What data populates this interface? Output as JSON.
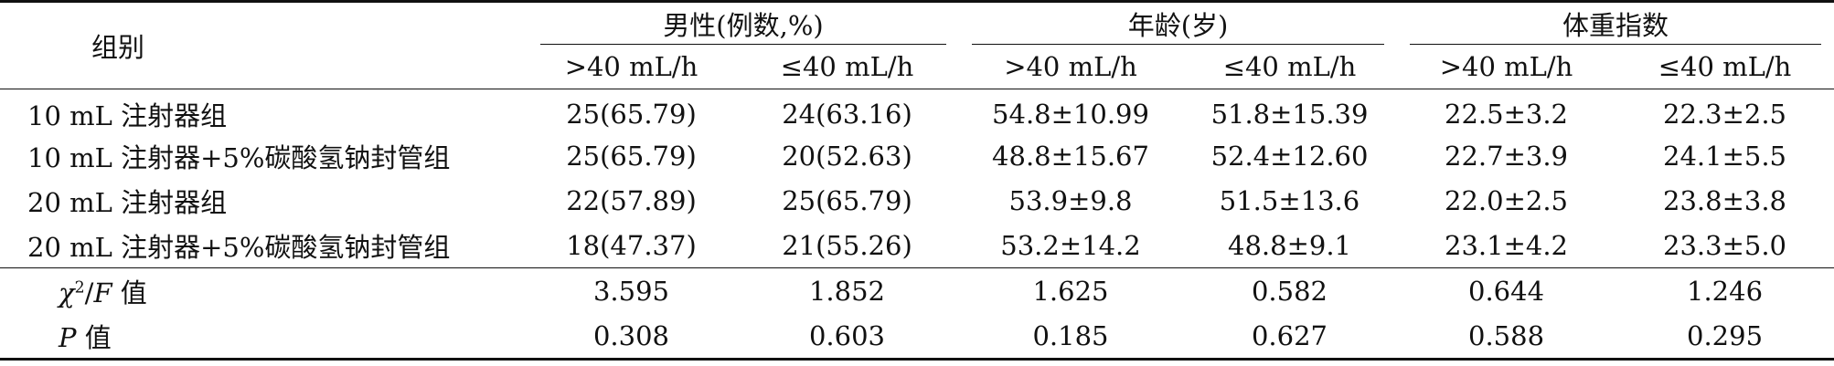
{
  "header": {
    "group_label": "组别",
    "groups": [
      {
        "title": "男性(例数,%)",
        "sub": [
          ">40 mL/h",
          "≤40 mL/h"
        ]
      },
      {
        "title": "年龄(岁)",
        "sub": [
          ">40 mL/h",
          "≤40 mL/h"
        ]
      },
      {
        "title": "体重指数",
        "sub": [
          ">40 mL/h",
          "≤40 mL/h"
        ]
      }
    ]
  },
  "rows": [
    {
      "label": "10 mL 注射器组",
      "cells": [
        "25(65.79)",
        "24(63.16)",
        "54.8±10.99",
        "51.8±15.39",
        "22.5±3.2",
        "22.3±2.5"
      ]
    },
    {
      "label": "10 mL 注射器+5%碳酸氢钠封管组",
      "cells": [
        "25(65.79)",
        "20(52.63)",
        "48.8±15.67",
        "52.4±12.60",
        "22.7±3.9",
        "24.1±5.5"
      ]
    },
    {
      "label": "20 mL 注射器组",
      "cells": [
        "22(57.89)",
        "25(65.79)",
        "53.9±9.8",
        "51.5±13.6",
        "22.0±2.5",
        "23.8±3.8"
      ]
    },
    {
      "label": "20 mL 注射器+5%碳酸氢钠封管组",
      "cells": [
        "18(47.37)",
        "21(55.26)",
        "53.2±14.2",
        "48.8±9.1",
        "23.1±4.2",
        "23.3±5.0"
      ]
    }
  ],
  "stats": [
    {
      "label_symbol": "χ",
      "label_sup": "2",
      "label_mid": "/",
      "label_symbol2": "F",
      "label_suffix": " 值",
      "cells": [
        "3.595",
        "1.852",
        "1.625",
        "0.582",
        "0.644",
        "1.246"
      ]
    },
    {
      "label_symbol": "P",
      "label_suffix": " 值",
      "cells": [
        "0.308",
        "0.603",
        "0.185",
        "0.627",
        "0.588",
        "0.295"
      ]
    }
  ]
}
